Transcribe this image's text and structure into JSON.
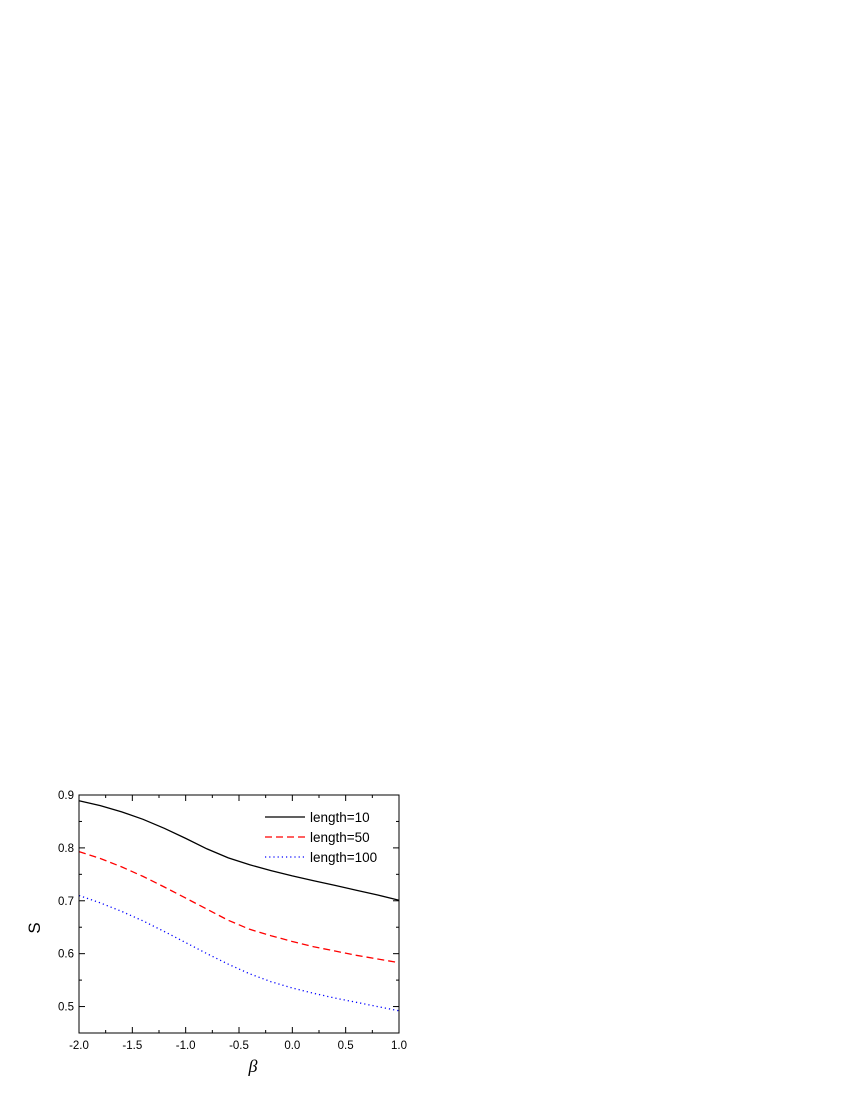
{
  "chart_data": {
    "type": "line",
    "xlabel": "β",
    "ylabel": "S",
    "xlim": [
      -2.0,
      1.0
    ],
    "ylim": [
      0.45,
      0.9
    ],
    "xticks": [
      -2.0,
      -1.5,
      -1.0,
      -0.5,
      0.0,
      0.5,
      1.0
    ],
    "xtick_labels": [
      "-2.0",
      "-1.5",
      "-1.0",
      "-0.5",
      "0.0",
      "0.5",
      "1.0"
    ],
    "yticks": [
      0.5,
      0.6,
      0.7,
      0.8,
      0.9
    ],
    "ytick_labels": [
      "0.5",
      "0.6",
      "0.7",
      "0.8",
      "0.9"
    ],
    "legend_position": "top-right",
    "grid": false,
    "x": [
      -2.0,
      -1.8,
      -1.6,
      -1.4,
      -1.2,
      -1.0,
      -0.8,
      -0.6,
      -0.4,
      -0.2,
      0.0,
      0.2,
      0.4,
      0.6,
      0.8,
      1.0
    ],
    "series": [
      {
        "name": "length=10",
        "color": "#000000",
        "style": "solid",
        "values": [
          0.889,
          0.88,
          0.868,
          0.854,
          0.837,
          0.818,
          0.798,
          0.781,
          0.768,
          0.757,
          0.747,
          0.738,
          0.729,
          0.72,
          0.711,
          0.701
        ]
      },
      {
        "name": "length=50",
        "color": "#ff0000",
        "style": "dashed",
        "values": [
          0.793,
          0.78,
          0.764,
          0.746,
          0.726,
          0.705,
          0.684,
          0.663,
          0.646,
          0.634,
          0.623,
          0.613,
          0.605,
          0.597,
          0.59,
          0.583
        ]
      },
      {
        "name": "length=100",
        "color": "#0000ff",
        "style": "dotted",
        "values": [
          0.71,
          0.696,
          0.68,
          0.662,
          0.642,
          0.621,
          0.6,
          0.58,
          0.562,
          0.547,
          0.535,
          0.525,
          0.516,
          0.508,
          0.5,
          0.492
        ]
      }
    ]
  }
}
